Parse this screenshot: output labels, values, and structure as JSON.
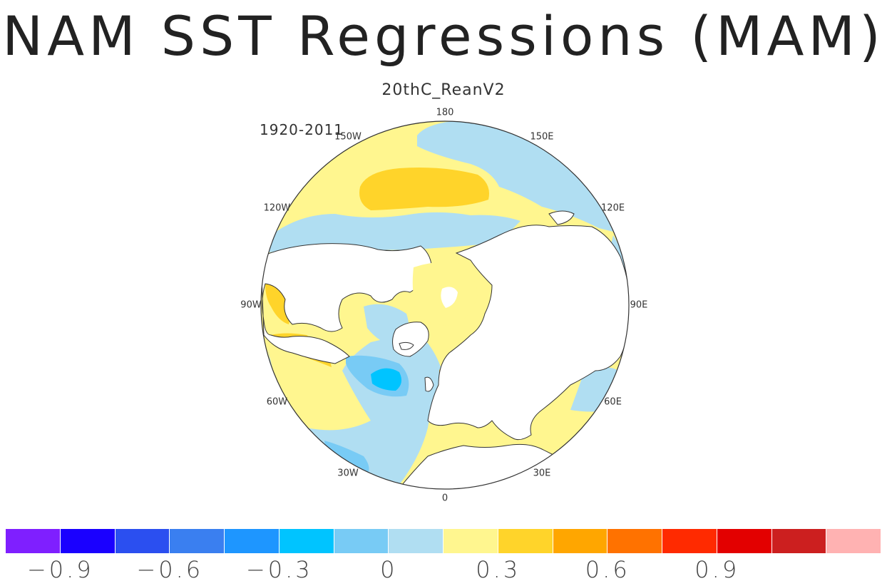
{
  "title": "NAM SST Regressions (MAM)",
  "subtitle": "20thC_ReanV2",
  "period": "1920-2011",
  "longitude_labels": [
    "180",
    "150E",
    "120E",
    "90E",
    "60E",
    "30E",
    "0",
    "30W",
    "60W",
    "90W",
    "120W",
    "150W"
  ],
  "map": {
    "projection": "north polar stereographic",
    "ocean_default_color": "#fff68f",
    "land_color": "#ffffff",
    "coast_color": "#333333"
  },
  "colorbar": {
    "colors": [
      "#7f1fff",
      "#1a00ff",
      "#2b4ff0",
      "#3a7ff0",
      "#1e96ff",
      "#00c4ff",
      "#78cbf5",
      "#b0def2",
      "#fff68f",
      "#ffd42a",
      "#ffa600",
      "#ff7200",
      "#ff2a00",
      "#e30000",
      "#cc1f1f",
      "#ffb2b2"
    ],
    "tick_labels": [
      "−0.9",
      "−0.6",
      "−0.3",
      "0",
      "0.3",
      "0.6",
      "0.9"
    ],
    "tick_values": [
      -0.9,
      -0.6,
      -0.3,
      0,
      0.3,
      0.6,
      0.9
    ]
  }
}
